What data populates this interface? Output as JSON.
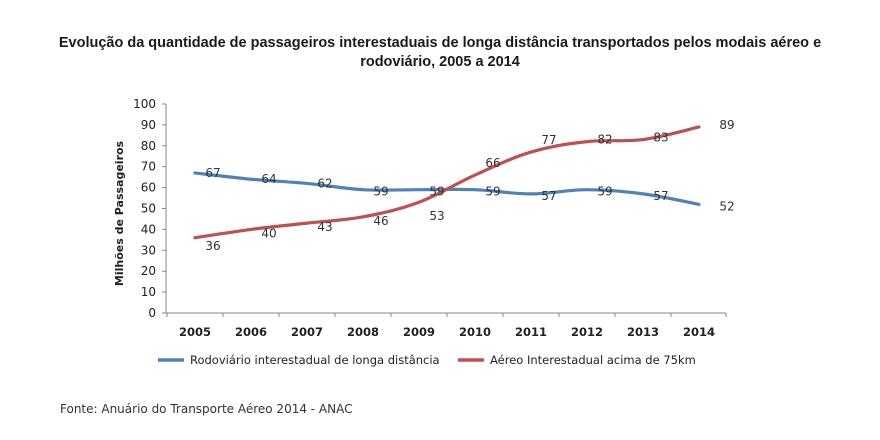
{
  "chart_data": {
    "type": "line",
    "title_line1": "Evolução da quantidade de passageiros interestaduais de longa distância transportados pelos modais aéreo e",
    "title_line2": "rodoviário, 2005 a 2014",
    "ylabel": "Milhões de Passageiros",
    "xlabel": "",
    "ylim": [
      0,
      100
    ],
    "yticks": [
      0,
      10,
      20,
      30,
      40,
      50,
      60,
      70,
      80,
      90,
      100
    ],
    "x": [
      "2005",
      "2006",
      "2007",
      "2008",
      "2009",
      "2010",
      "2011",
      "2012",
      "2013",
      "2014"
    ],
    "grid": false,
    "legend_position": "bottom",
    "series": [
      {
        "name": "Rodoviário interestadual de longa distância",
        "color": "#4f81bd",
        "values": [
          67,
          64,
          62,
          59,
          59,
          59,
          57,
          59,
          57,
          52
        ],
        "labels": [
          "67",
          "64",
          "62",
          "59",
          "59",
          "59",
          "57",
          "59",
          "57",
          "52"
        ]
      },
      {
        "name": "Aéreo Interestadual acima de 75km",
        "color": "#c0504d",
        "values": [
          36,
          40,
          43,
          46,
          53,
          66,
          77,
          82,
          83,
          89
        ],
        "labels": [
          "36",
          "40",
          "43",
          "46",
          "53",
          "66",
          "77",
          "82",
          "83",
          "89"
        ]
      }
    ]
  },
  "source": "Fonte: Anuário do Transporte Aéreo 2014 - ANAC"
}
